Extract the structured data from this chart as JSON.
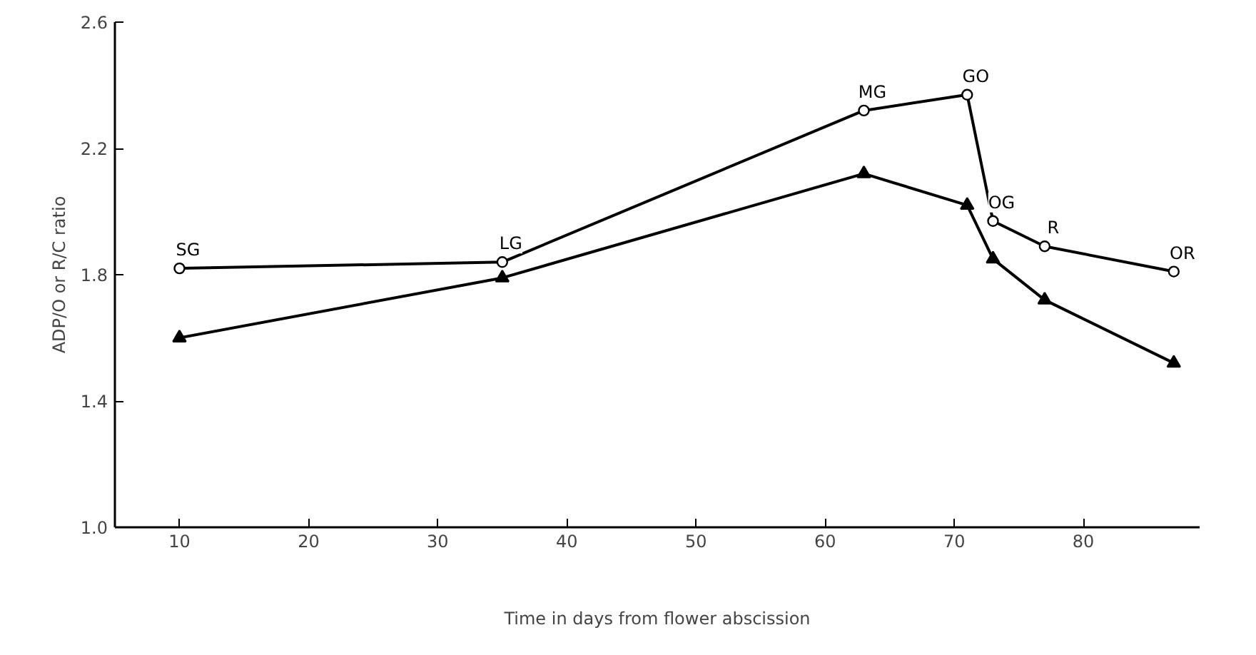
{
  "chart_data": {
    "type": "line",
    "xlabel": "Time in days from flower abscission",
    "ylabel": "ADP/O or R/C ratio",
    "xlim": [
      5,
      89
    ],
    "ylim": [
      1.0,
      2.6
    ],
    "xticks": [
      10,
      20,
      30,
      40,
      50,
      60,
      70,
      80
    ],
    "yticks": [
      {
        "value": 1,
        "label": "1.0"
      },
      1.4,
      1.8,
      2.2,
      2.6
    ],
    "grid": false,
    "series": [
      {
        "color": "#000000",
        "marker": "circle",
        "x": [
          10,
          35,
          63,
          71,
          73,
          77,
          87
        ],
        "values": [
          1.82,
          1.84,
          2.32,
          2.37,
          1.97,
          1.89,
          1.81
        ]
      },
      {
        "color": "#000000",
        "marker": "triangle",
        "x": [
          10,
          35,
          63,
          71,
          73,
          77,
          87
        ],
        "values": [
          1.6,
          1.79,
          2.12,
          2.02,
          1.85,
          1.72,
          1.52
        ]
      }
    ],
    "annotations": [
      {
        "text": "SG",
        "x": 10,
        "y": 1.82
      },
      {
        "text": "LG",
        "x": 35,
        "y": 1.84
      },
      {
        "text": "MG",
        "x": 63,
        "y": 2.32
      },
      {
        "text": "GO",
        "x": 71,
        "y": 2.37
      },
      {
        "text": "OG",
        "x": 73,
        "y": 1.97
      },
      {
        "text": "R",
        "x": 77,
        "y": 1.89
      },
      {
        "text": "OR",
        "x": 87,
        "y": 1.81
      }
    ]
  }
}
